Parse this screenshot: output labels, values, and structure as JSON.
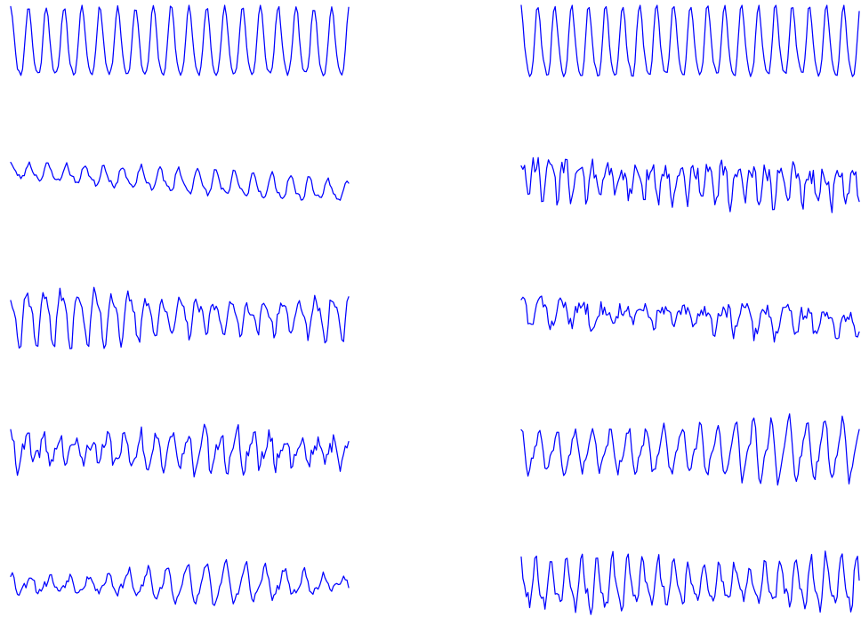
{
  "chart_data": {
    "type": "line",
    "grid": false,
    "axes": false,
    "legend": false,
    "samples_per_trace": 200,
    "line_color": "#0000ff",
    "series": [
      {
        "seed": 11,
        "period": 10.5,
        "amplitude": 0.84,
        "harmonic": 0.18,
        "noise": 0.06,
        "trend": 0.0,
        "am_freq": 0.0,
        "am_depth": 0.0
      },
      {
        "seed": 23,
        "period": 11.0,
        "amplitude": 0.3,
        "harmonic": 0.28,
        "noise": 0.06,
        "trend": -0.55,
        "am_freq": 0.6,
        "am_depth": 0.5
      },
      {
        "seed": 37,
        "period": 10.0,
        "amplitude": 0.7,
        "harmonic": 0.3,
        "noise": 0.14,
        "trend": 0.0,
        "am_freq": 0.9,
        "am_depth": 0.55
      },
      {
        "seed": 41,
        "period": 9.5,
        "amplitude": 0.48,
        "harmonic": 0.35,
        "noise": 0.2,
        "trend": 0.0,
        "am_freq": 1.4,
        "am_depth": 0.45
      },
      {
        "seed": 53,
        "period": 11.5,
        "amplitude": 0.46,
        "harmonic": 0.3,
        "noise": 0.1,
        "trend": 0.0,
        "am_freq": 1.1,
        "am_depth": 0.65
      },
      {
        "seed": 67,
        "period": 10.0,
        "amplitude": 0.86,
        "harmonic": 0.2,
        "noise": 0.06,
        "trend": 0.0,
        "am_freq": 0.0,
        "am_depth": 0.0
      },
      {
        "seed": 71,
        "period": 8.5,
        "amplitude": 0.5,
        "harmonic": 0.4,
        "noise": 0.24,
        "trend": -0.25,
        "am_freq": 1.5,
        "am_depth": 0.4
      },
      {
        "seed": 83,
        "period": 12.0,
        "amplitude": 0.34,
        "harmonic": 0.35,
        "noise": 0.2,
        "trend": -0.3,
        "am_freq": 1.2,
        "am_depth": 0.5
      },
      {
        "seed": 97,
        "period": 10.5,
        "amplitude": 0.7,
        "harmonic": 0.3,
        "noise": 0.12,
        "trend": 0.0,
        "am_freq": 0.8,
        "am_depth": 0.35
      },
      {
        "seed": 101,
        "period": 9.0,
        "amplitude": 0.62,
        "harmonic": 0.35,
        "noise": 0.16,
        "trend": 0.0,
        "am_freq": 1.3,
        "am_depth": 0.35
      }
    ]
  }
}
